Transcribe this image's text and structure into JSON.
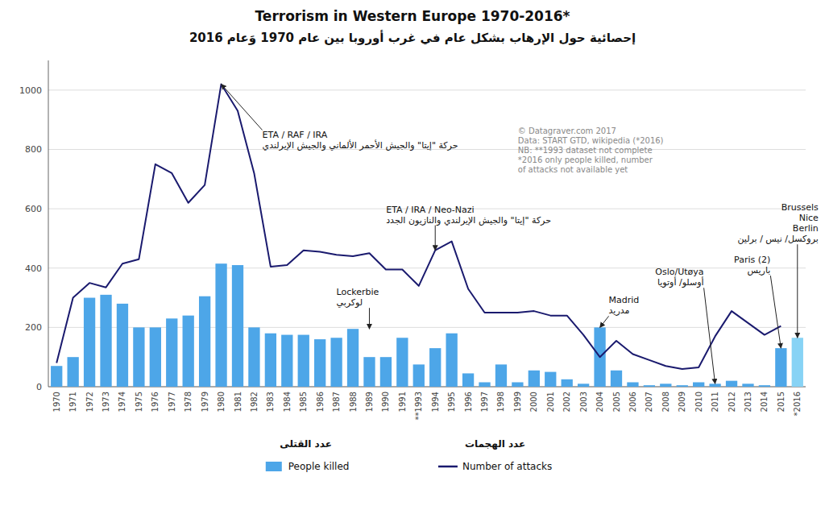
{
  "chart_data": {
    "type": "bar",
    "title": "Terrorism in Western Europe 1970-2016*",
    "subtitle": "إحصائية حول الإرهاب بشكل عام في غرب أوروبا بين عام 1970 وَعام 2016",
    "categories": [
      "1970",
      "1971",
      "1972",
      "1973",
      "1974",
      "1975",
      "1976",
      "1977",
      "1978",
      "1979",
      "1980",
      "1981",
      "1982",
      "1983",
      "1984",
      "1985",
      "1986",
      "1987",
      "1988",
      "1989",
      "1990",
      "1991",
      "**1993",
      "1994",
      "1995",
      "1996",
      "1997",
      "1998",
      "1999",
      "2000",
      "2001",
      "2002",
      "2003",
      "2004",
      "2005",
      "2006",
      "2007",
      "2008",
      "2009",
      "2010",
      "2011",
      "2012",
      "2013",
      "2014",
      "2015",
      "*2016"
    ],
    "series": [
      {
        "name": "People killed",
        "name_ar": "عدد القتلى",
        "type": "bar",
        "color": "#4da6e8",
        "colors": [
          "#4da6e8",
          "#4da6e8",
          "#4da6e8",
          "#4da6e8",
          "#4da6e8",
          "#4da6e8",
          "#4da6e8",
          "#4da6e8",
          "#4da6e8",
          "#4da6e8",
          "#4da6e8",
          "#4da6e8",
          "#4da6e8",
          "#4da6e8",
          "#4da6e8",
          "#4da6e8",
          "#4da6e8",
          "#4da6e8",
          "#4da6e8",
          "#4da6e8",
          "#4da6e8",
          "#4da6e8",
          "#4da6e8",
          "#4da6e8",
          "#4da6e8",
          "#4da6e8",
          "#4da6e8",
          "#4da6e8",
          "#4da6e8",
          "#4da6e8",
          "#4da6e8",
          "#4da6e8",
          "#4da6e8",
          "#4da6e8",
          "#4da6e8",
          "#4da6e8",
          "#4da6e8",
          "#4da6e8",
          "#4da6e8",
          "#4da6e8",
          "#4da6e8",
          "#4da6e8",
          "#4da6e8",
          "#4da6e8",
          "#4da6e8",
          "#87d3f5"
        ],
        "values": [
          70,
          100,
          300,
          310,
          280,
          200,
          200,
          230,
          240,
          305,
          415,
          410,
          200,
          180,
          175,
          175,
          160,
          165,
          195,
          100,
          100,
          165,
          75,
          130,
          180,
          45,
          15,
          75,
          15,
          55,
          50,
          25,
          10,
          200,
          55,
          15,
          5,
          10,
          5,
          15,
          10,
          20,
          10,
          5,
          130,
          165
        ]
      },
      {
        "name": "Number of attacks",
        "name_ar": "عدد الهجمات",
        "type": "line",
        "color": "#1a1a6e",
        "values": [
          80,
          300,
          350,
          335,
          415,
          430,
          750,
          720,
          620,
          680,
          1020,
          930,
          720,
          405,
          410,
          460,
          455,
          445,
          440,
          450,
          395,
          395,
          340,
          460,
          490,
          330,
          250,
          250,
          250,
          255,
          240,
          240,
          175,
          100,
          155,
          110,
          90,
          70,
          60,
          65,
          170,
          255,
          215,
          175,
          205,
          null
        ]
      }
    ],
    "ylim": [
      0,
      1100
    ],
    "yticks": [
      0,
      200,
      400,
      600,
      800,
      1000
    ],
    "grid": true,
    "legend": "bottom",
    "annotations": [
      {
        "text": "ETA / RAF / IRA",
        "text_ar": "حركة \"إيتا\" والجيش الأحمر الألماني والجيش الإيرلندي",
        "x": "1980",
        "y": 1020
      },
      {
        "text": "ETA / IRA / Neo-Nazi",
        "text_ar": "حركة \"إيتا\" والجيش الإيرلندي والنازيون الجدد",
        "x": "1994",
        "y": 460
      },
      {
        "text": "Lockerbie",
        "text_ar": "لوكربي",
        "x": "1989",
        "y": 195
      },
      {
        "text": "Madrid",
        "text_ar": "مدريد",
        "x": "2004",
        "y": 200
      },
      {
        "text": "Oslo/Utøya",
        "text_ar": "أوسلو/ أوتويا",
        "x": "2011",
        "y": 10
      },
      {
        "text": "Paris (2)",
        "text_ar": "باريس",
        "x": "2015",
        "y": 130
      },
      {
        "text": "Brussels\nNice\nBerlin",
        "text_ar": "بروكسل/ نيس / برلين",
        "x": "*2016",
        "y": 165
      },
      {
        "text": "© Datagraver.com 2017\nData: START GTD, wikipedia (*2016)\nNB: **1993 dataset not complete\n*2016  only people killed, number\nof attacks not available yet"
      }
    ]
  }
}
